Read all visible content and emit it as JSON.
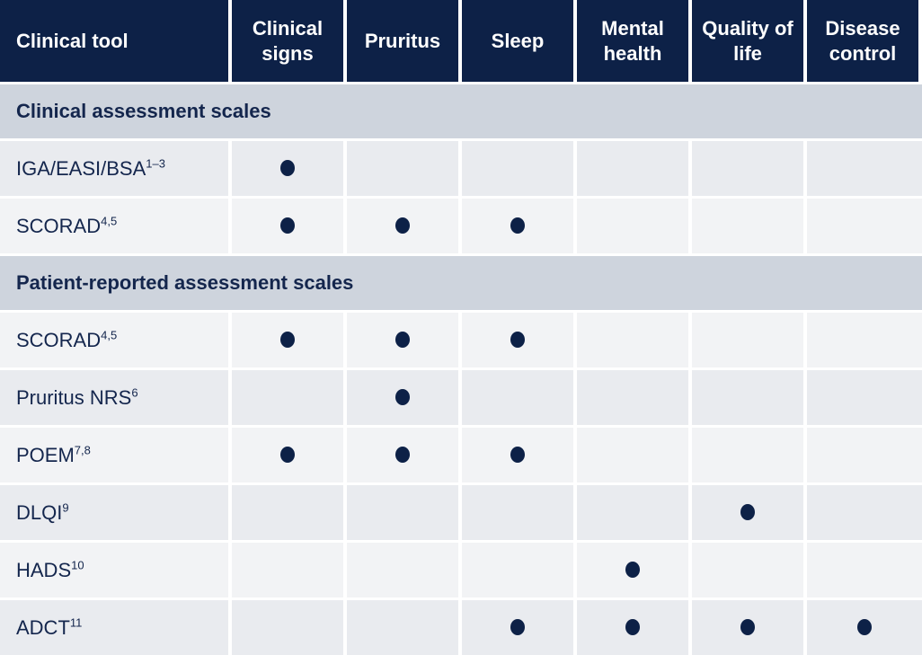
{
  "colors": {
    "header_bg": "#0d2147",
    "header_text": "#ffffff",
    "section_bg": "#ced4dd",
    "row_light_bg": "#f2f3f5",
    "row_dark_bg": "#e9ebef",
    "text_navy": "#14264d",
    "dot": "#0d2147",
    "gap": "#ffffff"
  },
  "chart_data": {
    "type": "table",
    "columns": [
      {
        "key": "tool",
        "label": "Clinical tool"
      },
      {
        "key": "clinical_signs",
        "label": "Clinical signs"
      },
      {
        "key": "pruritus",
        "label": "Pruritus"
      },
      {
        "key": "sleep",
        "label": "Sleep"
      },
      {
        "key": "mental_health",
        "label": "Mental health"
      },
      {
        "key": "quality_of_life",
        "label": "Quality of life"
      },
      {
        "key": "disease_control",
        "label": "Disease control"
      }
    ],
    "rows": [
      {
        "type": "section",
        "label": "Clinical assessment scales"
      },
      {
        "type": "data",
        "tone": "dark",
        "label": "IGA/EASI/BSA",
        "sup": "1–3",
        "marks": [
          "clinical_signs"
        ]
      },
      {
        "type": "data",
        "tone": "light",
        "label": "SCORAD",
        "sup": "4,5",
        "marks": [
          "clinical_signs",
          "pruritus",
          "sleep"
        ]
      },
      {
        "type": "section",
        "label": "Patient-reported assessment scales"
      },
      {
        "type": "data",
        "tone": "light",
        "label": "SCORAD",
        "sup": "4,5",
        "marks": [
          "clinical_signs",
          "pruritus",
          "sleep"
        ]
      },
      {
        "type": "data",
        "tone": "dark",
        "label": "Pruritus NRS",
        "sup": "6",
        "marks": [
          "pruritus"
        ]
      },
      {
        "type": "data",
        "tone": "light",
        "label": "POEM",
        "sup": "7,8",
        "marks": [
          "clinical_signs",
          "pruritus",
          "sleep"
        ]
      },
      {
        "type": "data",
        "tone": "dark",
        "label": "DLQI",
        "sup": "9",
        "marks": [
          "quality_of_life"
        ]
      },
      {
        "type": "data",
        "tone": "light",
        "label": "HADS",
        "sup": "10",
        "marks": [
          "mental_health"
        ]
      },
      {
        "type": "data",
        "tone": "dark",
        "label": "ADCT",
        "sup": "11",
        "marks": [
          "sleep",
          "mental_health",
          "quality_of_life",
          "disease_control"
        ]
      }
    ]
  }
}
